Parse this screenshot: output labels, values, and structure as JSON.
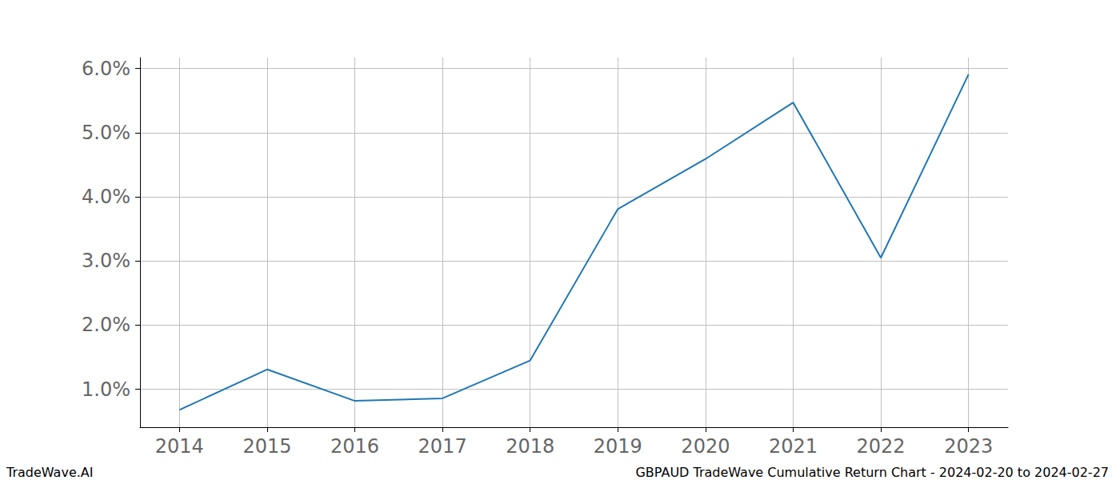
{
  "chart_data": {
    "type": "line",
    "x": [
      2014,
      2015,
      2016,
      2017,
      2018,
      2019,
      2020,
      2021,
      2022,
      2023
    ],
    "values": [
      0.68,
      1.31,
      0.82,
      0.86,
      1.45,
      3.81,
      4.59,
      5.47,
      3.05,
      5.91
    ],
    "color": "#1f77b4",
    "xlim": [
      2013.55,
      2023.45
    ],
    "xticks": [
      2014,
      2015,
      2016,
      2017,
      2018,
      2019,
      2020,
      2021,
      2022,
      2023
    ],
    "ylim": [
      0.41,
      6.17
    ],
    "yticks": [
      {
        "value": 1,
        "label": "1.0%"
      },
      {
        "value": 2,
        "label": "2.0%"
      },
      {
        "value": 3,
        "label": "3.0%"
      },
      {
        "value": 4,
        "label": "4.0%"
      },
      {
        "value": 5,
        "label": "5.0%"
      },
      {
        "value": 6,
        "label": "6.0%"
      }
    ],
    "grid": true,
    "annotations": [
      "TradeWave.AI",
      "GBPAUD TradeWave Cumulative Return Chart - 2024-02-20 to 2024-02-27"
    ]
  }
}
